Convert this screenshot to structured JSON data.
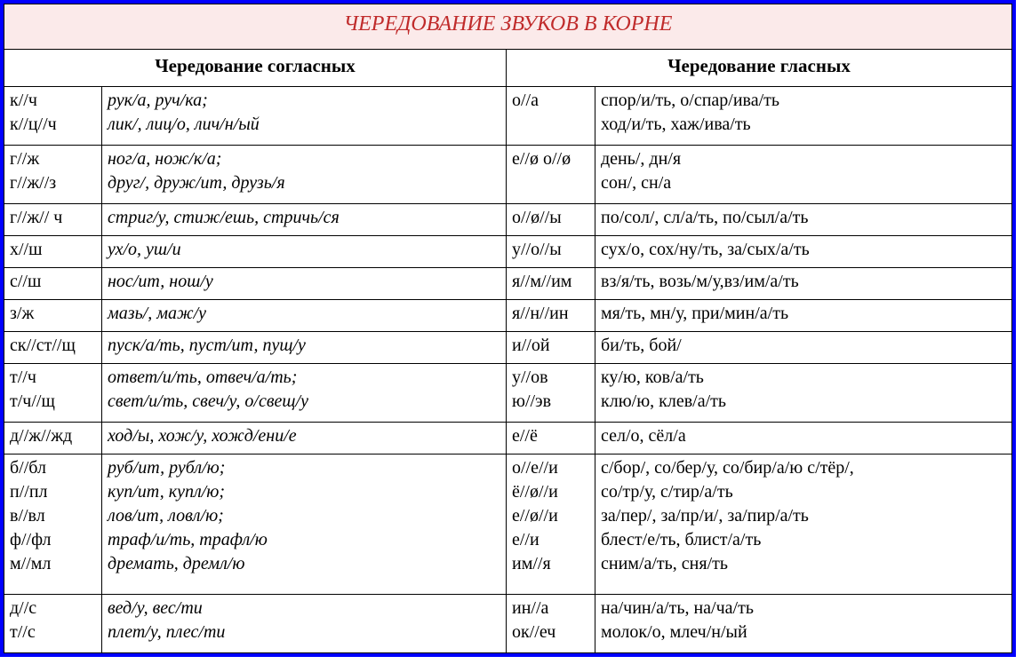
{
  "title": "ЧЕРЕДОВАНИЕ ЗВУКОВ В КОРНЕ",
  "header_consonants": "Чередование согласных",
  "header_vowels": "Чередование гласных",
  "colors": {
    "frame_border": "#0000ff",
    "title_bg": "#fbeaea",
    "title_text": "#c02b2b",
    "cell_border": "#000000",
    "text": "#000000"
  },
  "typography": {
    "family": "Times New Roman",
    "title_fontsize": 24,
    "header_fontsize": 21,
    "cell_fontsize": 20,
    "consonant_examples_italic": true,
    "title_italic": true
  },
  "rows": [
    {
      "c_pat": "к//ч\nк//ц//ч",
      "c_ex": "рук/а, руч/ка;\nлик/, лиц/о, лич/н/ый",
      "v_pat": "о//а",
      "v_ex": "спор/и/ть, о/спар/ива/ть\nход/и/ть, хаж/ива/ть"
    },
    {
      "c_pat": "г//ж\nг//ж//з",
      "c_ex": "ног/а, нож/к/а;\nдруг/, друж/ит, друзь/я",
      "v_pat": "е//ø о//ø",
      "v_ex": "день/, дн/я\nсон/, сн/а"
    },
    {
      "c_pat": "г//ж// ч",
      "c_ex": "стриг/у, стиж/ешь, стричь/ся",
      "v_pat": "о//ø//ы",
      "v_ex": "по/сол/, сл/а/ть, по/сыл/а/ть"
    },
    {
      "c_pat": "х//ш",
      "c_ex": "ух/о, уш/и",
      "v_pat": "у//о//ы",
      "v_ex": "сух/о, сох/ну/ть, за/сых/а/ть"
    },
    {
      "c_pat": "с//ш",
      "c_ex": "нос/ит, нош/у",
      "v_pat": "я//м//им",
      "v_ex": "вз/я/ть, возь/м/у,вз/им/а/ть"
    },
    {
      "c_pat": "з/ж",
      "c_ex": "мазь/, маж/у",
      "v_pat": "я//н//ин",
      "v_ex": "мя/ть, мн/у, при/мин/а/ть"
    },
    {
      "c_pat": "ск//ст//щ",
      "c_ex": "пуск/а/ть, пуст/ит, пущ/у",
      "v_pat": "и//ой",
      "v_ex": "би/ть, бой/"
    },
    {
      "c_pat": "т//ч\nт/ч//щ",
      "c_ex": "ответ/и/ть, отвеч/а/ть;\nсвет/и/ть, свеч/у, о/свещ/у",
      "v_pat": "у//ов\nю//эв",
      "v_ex": "ку/ю, ков/а/ть\nклю/ю, клев/а/ть"
    },
    {
      "c_pat": "д//ж//жд",
      "c_ex": "ход/ы, хож/у, хожд/ени/е",
      "v_pat": "е//ё",
      "v_ex": "сел/о, сёл/а"
    },
    {
      "c_pat": "б//бл\nп//пл\nв//вл\nф//фл\nм//мл",
      "c_ex": "руб/ит, рубл/ю;\nкуп/ит, купл/ю;\nлов/ит, ловл/ю;\nтраф/и/ть, трафл/ю\nдремать, дремл/ю",
      "v_pat": "о//е//и\nё//ø//и\nе//ø//и\nе//и\nим//я",
      "v_ex": "с/бор/, со/бер/у, со/бир/а/ю с/тёр/,\nсо/тр/у, с/тир/а/ть\nза/пер/, за/пр/и/, за/пир/а/ть\nблест/е/ть, блист/а/ть\nсним/а/ть, сня/ть"
    },
    {
      "c_pat": "д//с\nт//с",
      "c_ex": "вед/у, вес/ти\nплет/у, плес/ти",
      "v_pat": "ин//а\nок//еч",
      "v_ex": "на/чин/а/ть, на/ча/ть\nмолок/о, млеч/н/ый"
    }
  ]
}
